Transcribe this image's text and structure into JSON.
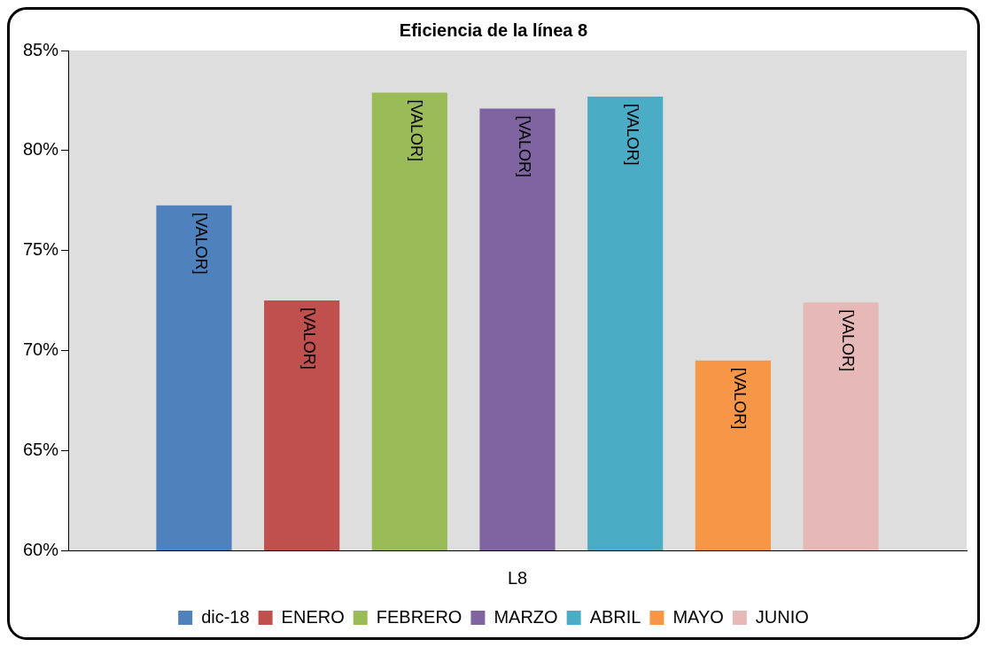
{
  "chart_data": {
    "type": "bar",
    "title": "Eficiencia de la línea 8",
    "categories": [
      "L8"
    ],
    "series": [
      {
        "name": "dic-18",
        "color": "#4f81bd",
        "values": [
          77.25
        ],
        "value_labels": [
          "[VALOR]"
        ]
      },
      {
        "name": "ENERO",
        "color": "#c0504d",
        "values": [
          72.5
        ],
        "value_labels": [
          "[VALOR]"
        ]
      },
      {
        "name": "FEBRERO",
        "color": "#9bbb59",
        "values": [
          82.9
        ],
        "value_labels": [
          "[VALOR]"
        ]
      },
      {
        "name": "MARZO",
        "color": "#8064a2",
        "values": [
          82.1
        ],
        "value_labels": [
          "[VALOR]"
        ]
      },
      {
        "name": "ABRIL",
        "color": "#4bacc6",
        "values": [
          82.7
        ],
        "value_labels": [
          "[VALOR]"
        ]
      },
      {
        "name": "MAYO",
        "color": "#f79646",
        "values": [
          69.5
        ],
        "value_labels": [
          "[VALOR]"
        ]
      },
      {
        "name": "JUNIO",
        "color": "#e6b9b8",
        "values": [
          72.4
        ],
        "value_labels": [
          "[VALOR]"
        ]
      }
    ],
    "ylim": [
      60,
      85
    ],
    "yticks": [
      {
        "value": 60,
        "label": "60%"
      },
      {
        "value": 65,
        "label": "65%"
      },
      {
        "value": 70,
        "label": "70%"
      },
      {
        "value": 75,
        "label": "75%"
      },
      {
        "value": 80,
        "label": "80%"
      },
      {
        "value": 85,
        "label": "85%"
      }
    ],
    "grid": false,
    "legend": "bottom"
  }
}
